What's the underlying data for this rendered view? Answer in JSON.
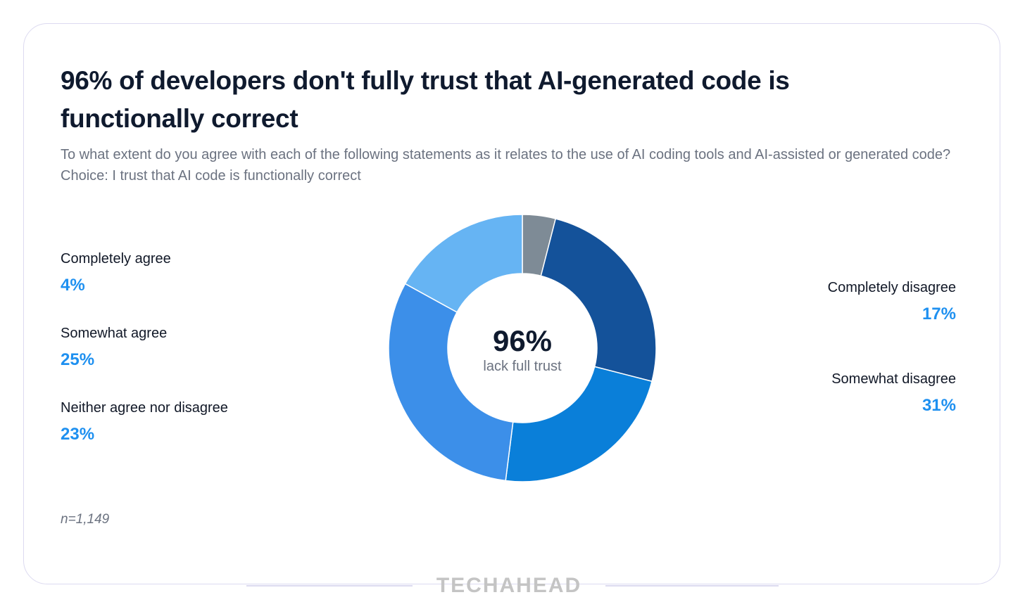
{
  "title": "96% of developers don't fully trust that AI-generated code is functionally correct",
  "subtitle": "To what extent do you agree with each of the following statements as it relates to the use of AI coding tools and AI-assisted or generated code? Choice: I trust that AI code is functionally correct",
  "center": {
    "value": "96%",
    "label": "lack full trust"
  },
  "footnote": "n=1,149",
  "brand": "TECHAHEAD",
  "chart_data": {
    "type": "pie",
    "title": "96% of developers don't fully trust that AI-generated code is functionally correct",
    "categories": [
      "Completely agree",
      "Somewhat agree",
      "Neither agree nor disagree",
      "Completely disagree",
      "Somewhat disagree"
    ],
    "values": [
      4,
      25,
      23,
      17,
      31
    ],
    "labels": [
      "4%",
      "25%",
      "23%",
      "17%",
      "31%"
    ],
    "chart_order": [
      0,
      1,
      2,
      4,
      3
    ],
    "colors": [
      "#7e8b96",
      "#14529a",
      "#0a7fd9",
      "#3c8fe9",
      "#66b4f3"
    ],
    "donut": true
  }
}
